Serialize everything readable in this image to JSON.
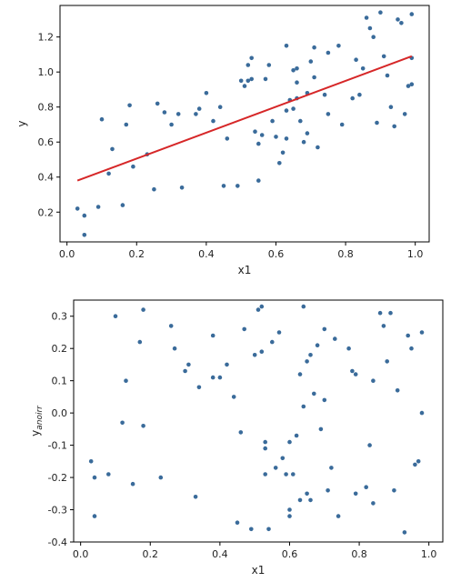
{
  "colors": {
    "point": "#3a6b9a",
    "fit_line": "#d62728",
    "axes": "#000000"
  },
  "chart_data": [
    {
      "type": "scatter",
      "xlabel": "x1",
      "ylabel": "y",
      "xlim": [
        -0.02,
        1.04
      ],
      "ylim": [
        0.03,
        1.38
      ],
      "xticks": [
        "0.0",
        "0.2",
        "0.4",
        "0.6",
        "0.8",
        "1.0"
      ],
      "xtick_values": [
        0.0,
        0.2,
        0.4,
        0.6,
        0.8,
        1.0
      ],
      "yticks": [
        "0.2",
        "0.4",
        "0.6",
        "0.8",
        "1.0",
        "1.2"
      ],
      "ytick_values": [
        0.2,
        0.4,
        0.6,
        0.8,
        1.0,
        1.2
      ],
      "grid": false,
      "fit_line": {
        "x": [
          0.03,
          0.99
        ],
        "y": [
          0.38,
          1.09
        ]
      },
      "points": [
        [
          0.03,
          0.22
        ],
        [
          0.05,
          0.18
        ],
        [
          0.05,
          0.07
        ],
        [
          0.09,
          0.23
        ],
        [
          0.1,
          0.73
        ],
        [
          0.12,
          0.42
        ],
        [
          0.13,
          0.56
        ],
        [
          0.16,
          0.24
        ],
        [
          0.17,
          0.7
        ],
        [
          0.18,
          0.81
        ],
        [
          0.19,
          0.46
        ],
        [
          0.23,
          0.53
        ],
        [
          0.25,
          0.33
        ],
        [
          0.26,
          0.82
        ],
        [
          0.28,
          0.77
        ],
        [
          0.3,
          0.7
        ],
        [
          0.32,
          0.76
        ],
        [
          0.33,
          0.34
        ],
        [
          0.37,
          0.76
        ],
        [
          0.38,
          0.79
        ],
        [
          0.4,
          0.88
        ],
        [
          0.42,
          0.72
        ],
        [
          0.44,
          0.8
        ],
        [
          0.45,
          0.35
        ],
        [
          0.46,
          0.62
        ],
        [
          0.49,
          0.35
        ],
        [
          0.5,
          0.95
        ],
        [
          0.51,
          0.92
        ],
        [
          0.52,
          1.04
        ],
        [
          0.53,
          1.08
        ],
        [
          0.53,
          0.96
        ],
        [
          0.54,
          0.66
        ],
        [
          0.55,
          0.59
        ],
        [
          0.55,
          0.38
        ],
        [
          0.57,
          0.96
        ],
        [
          0.58,
          1.04
        ],
        [
          0.59,
          0.72
        ],
        [
          0.6,
          0.63
        ],
        [
          0.61,
          0.48
        ],
        [
          0.62,
          0.54
        ],
        [
          0.63,
          0.62
        ],
        [
          0.63,
          1.15
        ],
        [
          0.64,
          0.84
        ],
        [
          0.65,
          0.79
        ],
        [
          0.65,
          1.01
        ],
        [
          0.66,
          0.94
        ],
        [
          0.67,
          0.72
        ],
        [
          0.68,
          0.6
        ],
        [
          0.69,
          0.65
        ],
        [
          0.7,
          1.06
        ],
        [
          0.71,
          0.97
        ],
        [
          0.72,
          0.57
        ],
        [
          0.74,
          0.87
        ],
        [
          0.75,
          0.76
        ],
        [
          0.78,
          1.15
        ],
        [
          0.79,
          0.7
        ],
        [
          0.82,
          0.85
        ],
        [
          0.84,
          0.87
        ],
        [
          0.85,
          1.02
        ],
        [
          0.86,
          1.31
        ],
        [
          0.87,
          1.25
        ],
        [
          0.88,
          1.2
        ],
        [
          0.89,
          0.71
        ],
        [
          0.9,
          1.34
        ],
        [
          0.91,
          1.09
        ],
        [
          0.92,
          0.98
        ],
        [
          0.93,
          0.8
        ],
        [
          0.94,
          0.69
        ],
        [
          0.95,
          1.3
        ],
        [
          0.96,
          1.28
        ],
        [
          0.97,
          0.76
        ],
        [
          0.98,
          0.92
        ],
        [
          0.99,
          1.33
        ],
        [
          0.99,
          1.08
        ],
        [
          0.99,
          0.93
        ],
        [
          0.71,
          1.14
        ],
        [
          0.75,
          1.11
        ],
        [
          0.83,
          1.07
        ],
        [
          0.66,
          0.85
        ],
        [
          0.63,
          0.78
        ],
        [
          0.66,
          1.02
        ],
        [
          0.69,
          0.88
        ],
        [
          0.52,
          0.95
        ],
        [
          0.56,
          0.64
        ]
      ]
    },
    {
      "type": "scatter",
      "xlabel": "x1",
      "ylabel": "y",
      "ylabel_subscript": "anoirr",
      "xlim": [
        -0.02,
        1.04
      ],
      "ylim": [
        -0.4,
        0.35
      ],
      "xticks": [
        "0.0",
        "0.2",
        "0.4",
        "0.6",
        "0.8",
        "1.0"
      ],
      "xtick_values": [
        0.0,
        0.2,
        0.4,
        0.6,
        0.8,
        1.0
      ],
      "yticks": [
        "-0.4",
        "-0.3",
        "-0.2",
        "-0.1",
        "0.0",
        "0.1",
        "0.2",
        "0.3"
      ],
      "ytick_values": [
        -0.4,
        -0.3,
        -0.2,
        -0.1,
        0.0,
        0.1,
        0.2,
        0.3
      ],
      "grid": false,
      "points": [
        [
          0.03,
          -0.15
        ],
        [
          0.04,
          -0.2
        ],
        [
          0.04,
          -0.32
        ],
        [
          0.08,
          -0.19
        ],
        [
          0.1,
          0.3
        ],
        [
          0.12,
          -0.03
        ],
        [
          0.13,
          0.1
        ],
        [
          0.15,
          -0.22
        ],
        [
          0.17,
          0.22
        ],
        [
          0.18,
          0.32
        ],
        [
          0.18,
          -0.04
        ],
        [
          0.23,
          -0.2
        ],
        [
          0.26,
          0.27
        ],
        [
          0.27,
          0.2
        ],
        [
          0.3,
          0.13
        ],
        [
          0.31,
          0.15
        ],
        [
          0.33,
          -0.26
        ],
        [
          0.34,
          0.08
        ],
        [
          0.38,
          0.24
        ],
        [
          0.38,
          0.11
        ],
        [
          0.4,
          0.11
        ],
        [
          0.42,
          0.15
        ],
        [
          0.44,
          0.05
        ],
        [
          0.45,
          -0.34
        ],
        [
          0.46,
          -0.06
        ],
        [
          0.47,
          0.26
        ],
        [
          0.49,
          -0.36
        ],
        [
          0.5,
          0.18
        ],
        [
          0.51,
          0.32
        ],
        [
          0.52,
          0.33
        ],
        [
          0.52,
          0.19
        ],
        [
          0.53,
          -0.09
        ],
        [
          0.53,
          -0.11
        ],
        [
          0.53,
          -0.19
        ],
        [
          0.54,
          -0.36
        ],
        [
          0.55,
          0.22
        ],
        [
          0.56,
          -0.17
        ],
        [
          0.58,
          -0.14
        ],
        [
          0.59,
          -0.19
        ],
        [
          0.6,
          -0.3
        ],
        [
          0.6,
          -0.32
        ],
        [
          0.61,
          -0.19
        ],
        [
          0.62,
          -0.07
        ],
        [
          0.63,
          0.12
        ],
        [
          0.63,
          -0.27
        ],
        [
          0.64,
          0.33
        ],
        [
          0.64,
          0.02
        ],
        [
          0.65,
          0.16
        ],
        [
          0.65,
          -0.25
        ],
        [
          0.66,
          -0.27
        ],
        [
          0.67,
          0.06
        ],
        [
          0.68,
          0.21
        ],
        [
          0.69,
          -0.05
        ],
        [
          0.7,
          0.26
        ],
        [
          0.7,
          0.04
        ],
        [
          0.71,
          -0.24
        ],
        [
          0.72,
          -0.17
        ],
        [
          0.73,
          0.23
        ],
        [
          0.74,
          -0.32
        ],
        [
          0.77,
          0.2
        ],
        [
          0.78,
          0.13
        ],
        [
          0.79,
          -0.25
        ],
        [
          0.82,
          -0.23
        ],
        [
          0.83,
          -0.1
        ],
        [
          0.84,
          -0.28
        ],
        [
          0.86,
          0.31
        ],
        [
          0.87,
          0.27
        ],
        [
          0.88,
          0.16
        ],
        [
          0.89,
          0.31
        ],
        [
          0.9,
          -0.24
        ],
        [
          0.91,
          0.07
        ],
        [
          0.93,
          -0.37
        ],
        [
          0.94,
          0.24
        ],
        [
          0.95,
          0.2
        ],
        [
          0.96,
          -0.16
        ],
        [
          0.97,
          -0.15
        ],
        [
          0.98,
          0.25
        ],
        [
          0.98,
          0.0
        ],
        [
          0.84,
          0.1
        ],
        [
          0.79,
          0.12
        ],
        [
          0.66,
          0.18
        ],
        [
          0.6,
          -0.09
        ],
        [
          0.57,
          0.25
        ]
      ]
    }
  ]
}
